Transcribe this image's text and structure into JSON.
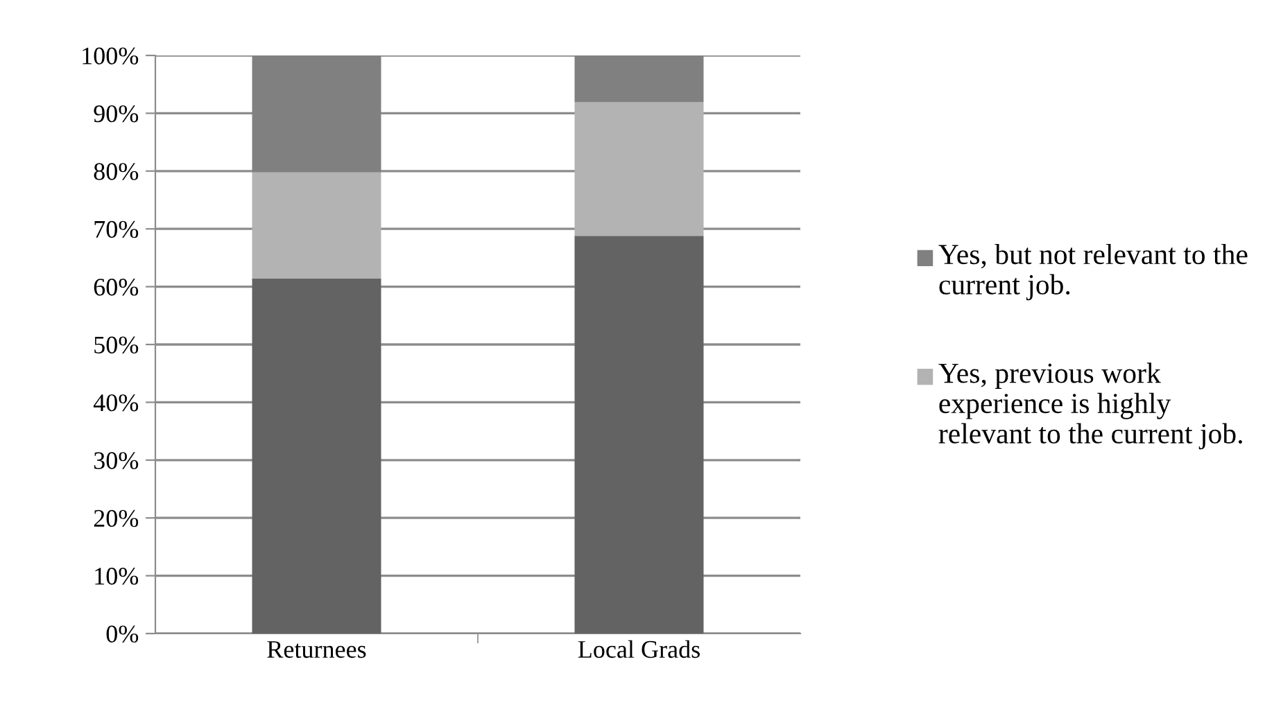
{
  "chart_data": {
    "type": "bar",
    "stacked": true,
    "categories": [
      "Returnees",
      "Local Grads"
    ],
    "series": [
      {
        "color": "#636363",
        "values": [
          61.4,
          68.8
        ]
      },
      {
        "name": "Yes, previous work experience is highly relevant to the current job.",
        "color": "#b3b3b3",
        "values": [
          18.4,
          23.1
        ]
      },
      {
        "name": "Yes, but not relevant to the current job.",
        "color": "#808080",
        "values": [
          20.2,
          8.1
        ]
      }
    ],
    "ylim": [
      0,
      100
    ],
    "yticks": [
      {
        "value": 0,
        "label": "0%"
      },
      {
        "value": 10,
        "label": "10%"
      },
      {
        "value": 20,
        "label": "20%"
      },
      {
        "value": 30,
        "label": "30%"
      },
      {
        "value": 40,
        "label": "40%"
      },
      {
        "value": 50,
        "label": "50%"
      },
      {
        "value": 60,
        "label": "60%"
      },
      {
        "value": 70,
        "label": "70%"
      },
      {
        "value": 80,
        "label": "80%"
      },
      {
        "value": 90,
        "label": "90%"
      },
      {
        "value": 100,
        "label": "100%"
      }
    ],
    "grid": "y",
    "legend": "right"
  }
}
